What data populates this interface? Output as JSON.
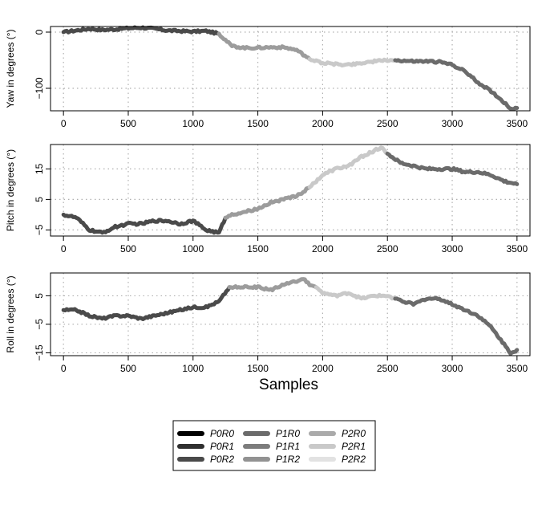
{
  "chart_data": [
    {
      "type": "line",
      "ylabel": "Yaw in degrees (°)",
      "xlabel": "",
      "xlim": [
        -100,
        3600
      ],
      "ylim": [
        -140,
        10
      ],
      "xticks": [
        0,
        500,
        1000,
        1500,
        2000,
        2500,
        3000,
        3500
      ],
      "xtick_labels": [
        "0",
        "500",
        "1000",
        "1500",
        "2000",
        "2500",
        "3000",
        "3500"
      ],
      "yticks": [
        0,
        -100
      ],
      "ytick_labels": [
        "0",
        "−100"
      ],
      "grid": true,
      "series": [
        {
          "name": "P0R2",
          "x": [
            0,
            100,
            200,
            300,
            400,
            500,
            600,
            700,
            800,
            900,
            1000,
            1100,
            1200
          ],
          "y": [
            0,
            3,
            6,
            4,
            5,
            7,
            8,
            6,
            3,
            2,
            1,
            2,
            -3
          ]
        },
        {
          "name": "P1R2",
          "x": [
            1200,
            1300,
            1400,
            1500,
            1600,
            1700,
            1800,
            1900
          ],
          "y": [
            -3,
            -25,
            -28,
            -28,
            -27,
            -27,
            -32,
            -48
          ]
        },
        {
          "name": "P2R1",
          "x": [
            1900,
            2000,
            2100,
            2200,
            2300,
            2400,
            2500,
            2560
          ],
          "y": [
            -48,
            -55,
            -57,
            -58,
            -55,
            -52,
            -50,
            -50
          ]
        },
        {
          "name": "P1R0",
          "x": [
            2560,
            2700,
            2800,
            2900,
            3000,
            3100,
            3200,
            3300,
            3400,
            3450,
            3500
          ],
          "y": [
            -50,
            -52,
            -52,
            -53,
            -58,
            -70,
            -90,
            -105,
            -125,
            -136,
            -135
          ]
        }
      ]
    },
    {
      "type": "line",
      "ylabel": "Pitch in degrees (°)",
      "xlabel": "",
      "xlim": [
        -100,
        3600
      ],
      "ylim": [
        -7,
        23
      ],
      "xticks": [
        0,
        500,
        1000,
        1500,
        2000,
        2500,
        3000,
        3500
      ],
      "xtick_labels": [
        "0",
        "500",
        "1000",
        "1500",
        "2000",
        "2500",
        "3000",
        "3500"
      ],
      "yticks": [
        -5,
        5,
        15
      ],
      "ytick_labels": [
        "−5",
        "5",
        "15"
      ],
      "grid": true,
      "series": [
        {
          "name": "P0R2",
          "x": [
            0,
            100,
            200,
            300,
            400,
            500,
            600,
            700,
            800,
            900,
            1000,
            1100,
            1200,
            1250
          ],
          "y": [
            0,
            -1,
            -5,
            -6,
            -4,
            -3,
            -3,
            -2,
            -2,
            -3,
            -2,
            -5,
            -6,
            -1
          ]
        },
        {
          "name": "P1R2",
          "x": [
            1250,
            1300,
            1400,
            1500,
            1600,
            1700,
            1800,
            1900
          ],
          "y": [
            -1,
            0,
            1,
            2,
            4,
            5,
            6,
            9
          ]
        },
        {
          "name": "P2R1",
          "x": [
            1900,
            2000,
            2100,
            2200,
            2300,
            2400,
            2450,
            2500
          ],
          "y": [
            9,
            13,
            15,
            16,
            19,
            21,
            22,
            20
          ]
        },
        {
          "name": "P1R0",
          "x": [
            2500,
            2600,
            2700,
            2800,
            2900,
            3000,
            3100,
            3200,
            3300,
            3400,
            3500
          ],
          "y": [
            20,
            17,
            16,
            15,
            15,
            15,
            14,
            14,
            13,
            11,
            10
          ]
        }
      ]
    },
    {
      "type": "line",
      "ylabel": "Roll in degrees (°)",
      "xlabel": "Samples",
      "xlim": [
        -100,
        3600
      ],
      "ylim": [
        -16,
        13
      ],
      "xticks": [
        0,
        500,
        1000,
        1500,
        2000,
        2500,
        3000,
        3500
      ],
      "xtick_labels": [
        "0",
        "500",
        "1000",
        "1500",
        "2000",
        "2500",
        "3000",
        "3500"
      ],
      "yticks": [
        -15,
        -5,
        5
      ],
      "ytick_labels": [
        "−15",
        "−5",
        "5"
      ],
      "grid": true,
      "series": [
        {
          "name": "P0R2",
          "x": [
            0,
            100,
            200,
            300,
            400,
            500,
            600,
            700,
            800,
            900,
            1000,
            1100,
            1200,
            1280
          ],
          "y": [
            0,
            0,
            -2,
            -3,
            -2,
            -2,
            -3,
            -2,
            -1,
            0,
            1,
            1,
            3,
            8
          ]
        },
        {
          "name": "P1R2",
          "x": [
            1280,
            1400,
            1500,
            1600,
            1700,
            1800,
            1850,
            1900,
            1950
          ],
          "y": [
            8,
            8,
            8,
            7,
            9,
            10,
            11,
            9,
            8
          ]
        },
        {
          "name": "P2R1",
          "x": [
            1950,
            2000,
            2100,
            2200,
            2300,
            2400,
            2500,
            2560
          ],
          "y": [
            8,
            6,
            5,
            6,
            4,
            5,
            5,
            4
          ]
        },
        {
          "name": "P1R0",
          "x": [
            2560,
            2700,
            2800,
            2900,
            3000,
            3100,
            3200,
            3300,
            3400,
            3450,
            3500
          ],
          "y": [
            4,
            2,
            4,
            4,
            2,
            0,
            -2,
            -6,
            -12,
            -15,
            -14
          ]
        }
      ]
    }
  ],
  "legend": [
    {
      "label": "P0R0",
      "color": "#000000"
    },
    {
      "label": "P0R1",
      "color": "#2f2f2f"
    },
    {
      "label": "P0R2",
      "color": "#4a4a4a"
    },
    {
      "label": "P1R0",
      "color": "#6b6b6b"
    },
    {
      "label": "P1R1",
      "color": "#7c7c7c"
    },
    {
      "label": "P1R2",
      "color": "#929292"
    },
    {
      "label": "P2R0",
      "color": "#aaaaaa"
    },
    {
      "label": "P2R1",
      "color": "#c9c9c9"
    },
    {
      "label": "P2R2",
      "color": "#e2e2e2"
    }
  ],
  "colors": {
    "P0R2": "#4a4a4a",
    "P1R0": "#6b6b6b",
    "P1R2": "#9c9c9c",
    "P2R1": "#c9c9c9"
  }
}
